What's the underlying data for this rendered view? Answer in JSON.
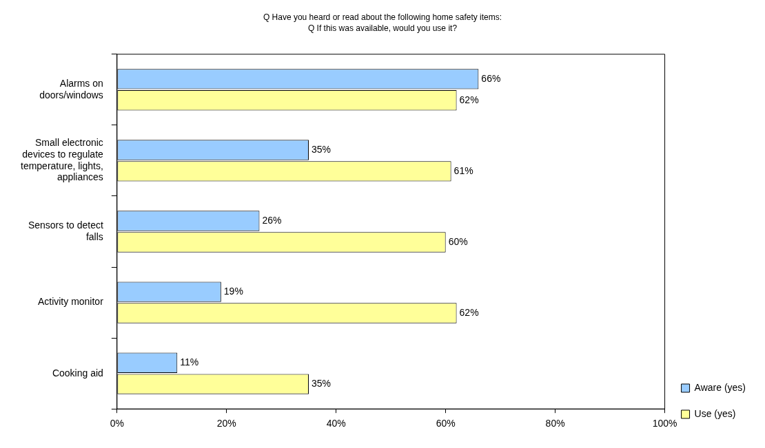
{
  "chart_data": {
    "type": "bar",
    "orientation": "horizontal",
    "title": "Q Have you heard or read about the following home safety items:",
    "subtitle": "Q If this was available, would you use it?",
    "categories": [
      "Alarms on doors/windows",
      "Small electronic devices to regulate temperature, lights, appliances",
      "Sensors to detect falls",
      "Activity monitor",
      "Cooking aid"
    ],
    "series": [
      {
        "name": "Aware (yes)",
        "color": "#99ccff",
        "values": [
          66,
          35,
          26,
          19,
          11
        ],
        "value_labels": [
          "66%",
          "35%",
          "26%",
          "19%",
          "11%"
        ]
      },
      {
        "name": "Use (yes)",
        "color": "#ffff99",
        "values": [
          62,
          61,
          60,
          62,
          35
        ],
        "value_labels": [
          "62%",
          "61%",
          "60%",
          "62%",
          "35%"
        ]
      }
    ],
    "xlim": [
      0,
      100
    ],
    "xticks": [
      {
        "value": 0,
        "label": "0%"
      },
      {
        "value": 20,
        "label": "20%"
      },
      {
        "value": 40,
        "label": "40%"
      },
      {
        "value": 60,
        "label": "60%"
      },
      {
        "value": 80,
        "label": "80%"
      },
      {
        "value": 100,
        "label": "100%"
      }
    ],
    "grid": false,
    "legend": "bottom right"
  }
}
